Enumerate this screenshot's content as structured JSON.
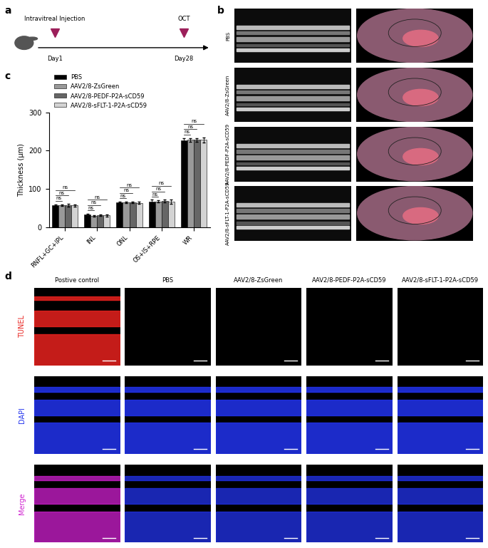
{
  "panel_labels": [
    "a",
    "b",
    "c",
    "d"
  ],
  "timeline": {
    "events": [
      {
        "label": "Intravitreal Injection",
        "day": "Day1"
      },
      {
        "label": "OCT",
        "day": "Day28"
      }
    ]
  },
  "oct_panel": {
    "rows": [
      "PBS",
      "AAV2/8-ZsGreen",
      "AAV2/8-PEDF-P2A-sCD59",
      "AAV2/8-sFLT-1-P2A-sCD59"
    ]
  },
  "chart_data": {
    "type": "bar",
    "y_label": "Thickness (μm)",
    "categories": [
      "RNFL+GC+IPL",
      "INL",
      "ONL",
      "OS+IS+RPE",
      "WR"
    ],
    "series": [
      {
        "name": "PBS",
        "color": "#000000",
        "values": [
          57,
          33,
          66,
          68,
          226
        ],
        "errors": [
          2,
          3,
          2,
          4,
          6
        ]
      },
      {
        "name": "AAV2/8-ZsGreen",
        "color": "#999999",
        "values": [
          58,
          30,
          66,
          68,
          228
        ],
        "errors": [
          2,
          2,
          2,
          3,
          5
        ]
      },
      {
        "name": "AAV2/8-PEDF-P2A-sCD59",
        "color": "#666666",
        "values": [
          58,
          32,
          66,
          69,
          228
        ],
        "errors": [
          3,
          2,
          2,
          3,
          4
        ]
      },
      {
        "name": "AAV2/8-sFLT-1-P2A-sCD59",
        "color": "#d3d3d3",
        "values": [
          57,
          31,
          64,
          67,
          228
        ],
        "errors": [
          2,
          2,
          3,
          5,
          6
        ]
      }
    ],
    "significance": [
      {
        "category": "RNFL+GC+IPL",
        "groups": [
          "PBS",
          "AAV2/8-ZsGreen"
        ],
        "label": "ns"
      },
      {
        "category": "RNFL+GC+IPL",
        "groups": [
          "PBS",
          "AAV2/8-PEDF-P2A-sCD59"
        ],
        "label": "ns"
      },
      {
        "category": "RNFL+GC+IPL",
        "groups": [
          "PBS",
          "AAV2/8-sFLT-1-P2A-sCD59"
        ],
        "label": "ns"
      },
      {
        "category": "INL",
        "groups": [
          "PBS",
          "AAV2/8-ZsGreen"
        ],
        "label": "ns"
      },
      {
        "category": "INL",
        "groups": [
          "PBS",
          "AAV2/8-PEDF-P2A-sCD59"
        ],
        "label": "ns"
      },
      {
        "category": "INL",
        "groups": [
          "PBS",
          "AAV2/8-sFLT-1-P2A-sCD59"
        ],
        "label": "ns"
      },
      {
        "category": "ONL",
        "groups": [
          "PBS",
          "AAV2/8-ZsGreen"
        ],
        "label": "ns"
      },
      {
        "category": "ONL",
        "groups": [
          "PBS",
          "AAV2/8-PEDF-P2A-sCD59"
        ],
        "label": "ns"
      },
      {
        "category": "ONL",
        "groups": [
          "PBS",
          "AAV2/8-sFLT-1-P2A-sCD59"
        ],
        "label": "ns"
      },
      {
        "category": "OS+IS+RPE",
        "groups": [
          "PBS",
          "AAV2/8-ZsGreen"
        ],
        "label": "ns"
      },
      {
        "category": "OS+IS+RPE",
        "groups": [
          "PBS",
          "AAV2/8-PEDF-P2A-sCD59"
        ],
        "label": "ns"
      },
      {
        "category": "OS+IS+RPE",
        "groups": [
          "PBS",
          "AAV2/8-sFLT-1-P2A-sCD59"
        ],
        "label": "ns"
      },
      {
        "category": "WR",
        "groups": [
          "PBS",
          "AAV2/8-ZsGreen"
        ],
        "label": "ns"
      },
      {
        "category": "WR",
        "groups": [
          "PBS",
          "AAV2/8-PEDF-P2A-sCD59"
        ],
        "label": "ns"
      },
      {
        "category": "WR",
        "groups": [
          "PBS",
          "AAV2/8-sFLT-1-P2A-sCD59"
        ],
        "label": "ns"
      }
    ],
    "ylim": [
      0,
      300
    ],
    "yticks": [
      0,
      100,
      200,
      300
    ],
    "legend": "upper left",
    "grid": false
  },
  "tunel_panel": {
    "columns": [
      "Postive control",
      "PBS",
      "AAV2/8-ZsGreen",
      "AAV2/8-PEDF-P2A-sCD59",
      "AAV2/8-sFLT-1-P2A-sCD59"
    ],
    "rows": [
      {
        "name": "TUNEL",
        "color": "#e8221e"
      },
      {
        "name": "DAPI",
        "color": "#2233ee"
      },
      {
        "name": "Merge",
        "color": "#d020d0"
      }
    ]
  }
}
